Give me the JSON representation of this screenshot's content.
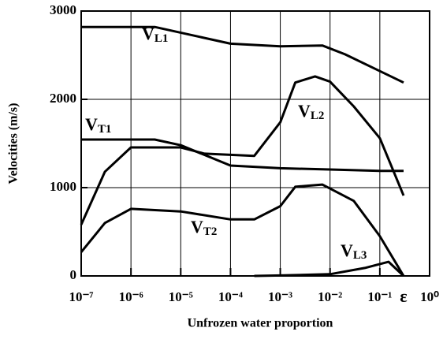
{
  "chart_data": {
    "type": "line",
    "xlabel": "Unfrozen water proportion",
    "ylabel": "Velocities (m/s)",
    "xscale": "log",
    "xlim": [
      1e-07,
      1
    ],
    "xticks": [
      {
        "value": 1e-07,
        "label": "10⁻⁷"
      },
      {
        "value": 1e-06,
        "label": "10⁻⁶"
      },
      {
        "value": 1e-05,
        "label": "10⁻⁵"
      },
      {
        "value": 0.0001,
        "label": "10⁻⁴"
      },
      {
        "value": 0.001,
        "label": "10⁻³"
      },
      {
        "value": 0.01,
        "label": "10⁻²"
      },
      {
        "value": 0.1,
        "label": "10⁻¹"
      },
      {
        "value": 1,
        "label": "10⁰"
      }
    ],
    "ylim": [
      0,
      3000
    ],
    "yticks": [
      0,
      1000,
      2000,
      3000
    ],
    "grid": true,
    "annotations": [
      "ε"
    ],
    "series": [
      {
        "name": "VL1",
        "color": "#000000",
        "x": [
          1e-07,
          3e-06,
          0.0001,
          0.001,
          0.007,
          0.02,
          0.1,
          0.3
        ],
        "values": [
          2820,
          2820,
          2630,
          2600,
          2610,
          2510,
          2320,
          2190
        ]
      },
      {
        "name": "VT1",
        "color": "#000000",
        "x": [
          1e-07,
          3e-06,
          1e-05,
          0.0001,
          0.001,
          0.01,
          0.1,
          0.3
        ],
        "values": [
          1545,
          1545,
          1480,
          1250,
          1220,
          1205,
          1190,
          1190
        ]
      },
      {
        "name": "VL2",
        "color": "#000000",
        "x": [
          1e-07,
          3e-07,
          1e-06,
          1e-05,
          3e-05,
          0.0003,
          0.001,
          0.002,
          0.005,
          0.01,
          0.03,
          0.1,
          0.3
        ],
        "values": [
          580,
          1180,
          1455,
          1455,
          1385,
          1360,
          1740,
          2190,
          2260,
          2200,
          1920,
          1560,
          910
        ]
      },
      {
        "name": "VT2",
        "color": "#000000",
        "x": [
          1e-07,
          3e-07,
          1e-06,
          1e-05,
          0.0001,
          0.0003,
          0.001,
          0.002,
          0.007,
          0.03,
          0.1,
          0.3
        ],
        "values": [
          270,
          600,
          760,
          730,
          640,
          640,
          790,
          1010,
          1035,
          850,
          450,
          0
        ]
      },
      {
        "name": "VL3",
        "color": "#000000",
        "x": [
          0.0003,
          0.001,
          0.01,
          0.05,
          0.1,
          0.15,
          0.3
        ],
        "values": [
          0,
          5,
          20,
          90,
          135,
          160,
          0
        ]
      }
    ]
  }
}
